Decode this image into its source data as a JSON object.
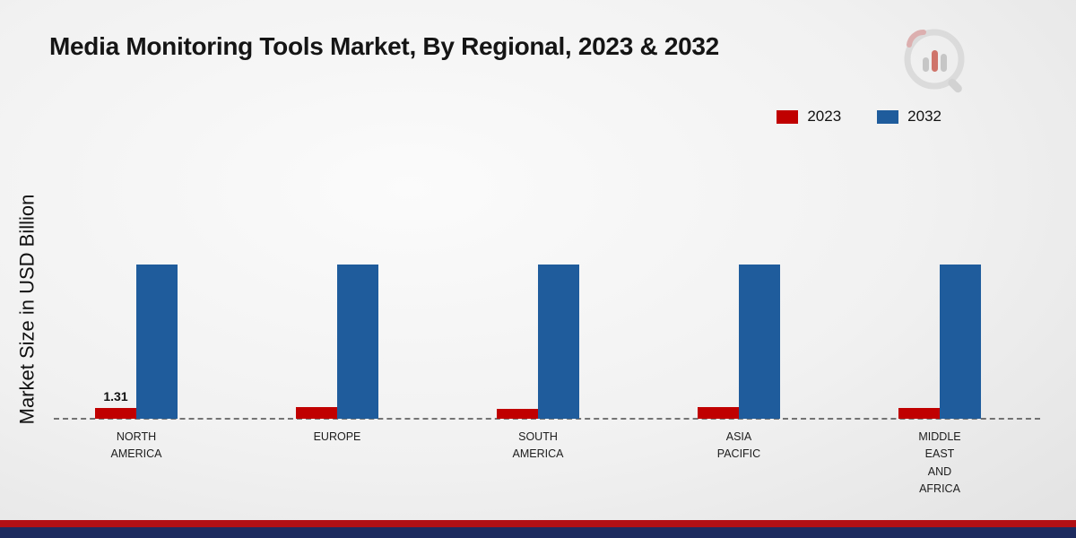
{
  "title": "Media Monitoring Tools Market, By Regional, 2023 & 2032",
  "ylabel": "Market Size in USD Billion",
  "colors": {
    "series_2023": "#c00000",
    "series_2032": "#1f5c9c",
    "footer_red": "#b11015",
    "footer_navy": "#1d2b5f",
    "baseline": "#555555"
  },
  "chart_data": {
    "type": "bar",
    "title": "Media Monitoring Tools Market, By Regional, 2023 & 2032",
    "xlabel": "",
    "ylabel": "Market Size in USD Billion",
    "categories": [
      "North America",
      "Europe",
      "South America",
      "Asia Pacific",
      "Middle East and Africa"
    ],
    "category_lines": [
      [
        "NORTH",
        "AMERICA"
      ],
      [
        "EUROPE"
      ],
      [
        "SOUTH",
        "AMERICA"
      ],
      [
        "ASIA",
        "PACIFIC"
      ],
      [
        "MIDDLE",
        "EAST",
        "AND",
        "AFRICA"
      ]
    ],
    "series": [
      {
        "name": "2023",
        "color": "#c00000",
        "values": [
          1.31,
          1.35,
          1.2,
          1.45,
          1.3
        ]
      },
      {
        "name": "2032",
        "color": "#1f5c9c",
        "values": [
          18.5,
          18.5,
          18.5,
          18.5,
          18.5
        ]
      }
    ],
    "bar_labels": [
      {
        "series_index": 0,
        "category_index": 0,
        "text": "1.31"
      }
    ],
    "ylim": [
      0,
      20
    ],
    "grid": false,
    "axis_ticks_visible": false,
    "legend_position": "top-right"
  }
}
